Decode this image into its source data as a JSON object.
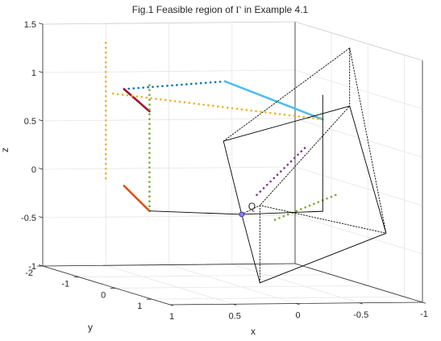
{
  "chart_data": {
    "type": "scatter",
    "title_prefix": "Fig.1 Feasible region of ",
    "title_symbol": "Γ",
    "title_suffix": " in Example 4.1",
    "xlabel": "x",
    "ylabel": "y",
    "zlabel": "z",
    "xlim": [
      -1,
      1
    ],
    "ylim": [
      -2,
      1.5
    ],
    "zlim": [
      -1,
      1.5
    ],
    "x_reversed": true,
    "grid": true,
    "box": true,
    "x_ticks": [
      {
        "value": 1,
        "label": "1"
      },
      {
        "value": 0.5,
        "label": "0.5"
      },
      {
        "value": 0,
        "label": "0"
      },
      {
        "value": -0.5,
        "label": "-0.5"
      },
      {
        "value": -1,
        "label": "-1"
      }
    ],
    "y_ticks": [
      {
        "value": -2,
        "label": "-2"
      },
      {
        "value": -1,
        "label": "-1"
      },
      {
        "value": 0,
        "label": "0"
      },
      {
        "value": 1,
        "label": "1"
      }
    ],
    "z_ticks": [
      {
        "value": -1,
        "label": "-1"
      },
      {
        "value": -0.5,
        "label": "-0.5"
      },
      {
        "value": 0,
        "label": "0"
      },
      {
        "value": 0.5,
        "label": "0.5"
      },
      {
        "value": 1,
        "label": "1"
      },
      {
        "value": 1.5,
        "label": "1.5"
      }
    ],
    "point_label": {
      "text": "Q",
      "x": 0,
      "y": 0,
      "z": -0.25
    },
    "series": [
      {
        "color": "#0072bd",
        "style": "dotted",
        "points": [
          [
            0.5,
            -1.5,
            0.88
          ],
          [
            -0.3,
            -1.5,
            0.95
          ]
        ]
      },
      {
        "color": "#4dbeee",
        "style": "solid",
        "points": [
          [
            -0.3,
            -1.5,
            0.95
          ],
          [
            -0.7,
            -0.2,
            0.7
          ]
        ]
      },
      {
        "color": "#a2142f",
        "style": "solid",
        "points": [
          [
            0.5,
            -1.5,
            0.88
          ],
          [
            0.5,
            -0.8,
            0.73
          ]
        ]
      },
      {
        "color": "#d95319",
        "style": "solid",
        "points": [
          [
            0.5,
            -1.5,
            -0.12
          ],
          [
            0.5,
            -0.8,
            -0.3
          ]
        ]
      },
      {
        "color": "#edb120",
        "style": "dotted",
        "points": [
          [
            0.5,
            -2,
            1.3
          ],
          [
            0.5,
            -2,
            -0.1
          ]
        ]
      },
      {
        "color": "#edb120",
        "style": "dotted",
        "points": [
          [
            0.5,
            -1.8,
            0.8
          ],
          [
            -0.7,
            -0.2,
            0.7
          ]
        ]
      },
      {
        "color": "#77ac30",
        "style": "dotted",
        "points": [
          [
            0.5,
            -0.8,
            1.0
          ],
          [
            0.5,
            -0.8,
            -0.3
          ]
        ]
      },
      {
        "color": "#7e2f8e",
        "style": "dotted",
        "points": [
          [
            -0.12,
            0,
            -0.05
          ],
          [
            -0.5,
            0,
            0.43
          ]
        ]
      },
      {
        "color": "#77ac30",
        "style": "dotted",
        "points": [
          [
            -0.12,
            0.5,
            -0.25
          ],
          [
            -0.6,
            0.5,
            0.0
          ]
        ]
      },
      {
        "color": "#000000",
        "style": "solid",
        "points": [
          [
            0.5,
            -0.8,
            -0.3
          ],
          [
            0,
            0,
            -0.25
          ]
        ]
      },
      {
        "color": "#000000",
        "style": "solid",
        "points": [
          [
            0,
            0,
            -0.25
          ],
          [
            -0.7,
            -0.2,
            -0.25
          ]
        ]
      },
      {
        "color": "#000000",
        "style": "solid",
        "points": [
          [
            -0.7,
            -0.2,
            -0.25
          ],
          [
            -0.7,
            -0.2,
            0.95
          ]
        ]
      },
      {
        "color": "#000000",
        "style": "solid",
        "points": [
          [
            0,
            0,
            -0.25
          ],
          [
            0,
            0.5,
            -0.9
          ],
          [
            -1,
            0.5,
            -0.4
          ],
          [
            -1,
            -0.5,
            0.8
          ],
          [
            0,
            -0.5,
            0.45
          ],
          [
            0,
            0,
            -0.25
          ]
        ]
      },
      {
        "color": "#000000",
        "style": "dotted",
        "points": [
          [
            0,
            0,
            -0.25
          ],
          [
            0,
            0.5,
            -0.1
          ],
          [
            -1,
            0.5,
            -0.4
          ]
        ]
      },
      {
        "color": "#000000",
        "style": "dotted",
        "points": [
          [
            0,
            0.5,
            -0.9
          ],
          [
            0,
            0.5,
            -0.1
          ],
          [
            -1,
            -0.5,
            0.8
          ]
        ]
      },
      {
        "color": "#000000",
        "style": "dotted",
        "points": [
          [
            0,
            -0.5,
            0.45
          ],
          [
            -1,
            -0.5,
            1.4
          ],
          [
            -1,
            -0.5,
            0.8
          ]
        ]
      },
      {
        "color": "#000000",
        "style": "dotted",
        "points": [
          [
            -1,
            -0.5,
            1.4
          ],
          [
            -1,
            0.5,
            -0.4
          ]
        ]
      }
    ]
  }
}
